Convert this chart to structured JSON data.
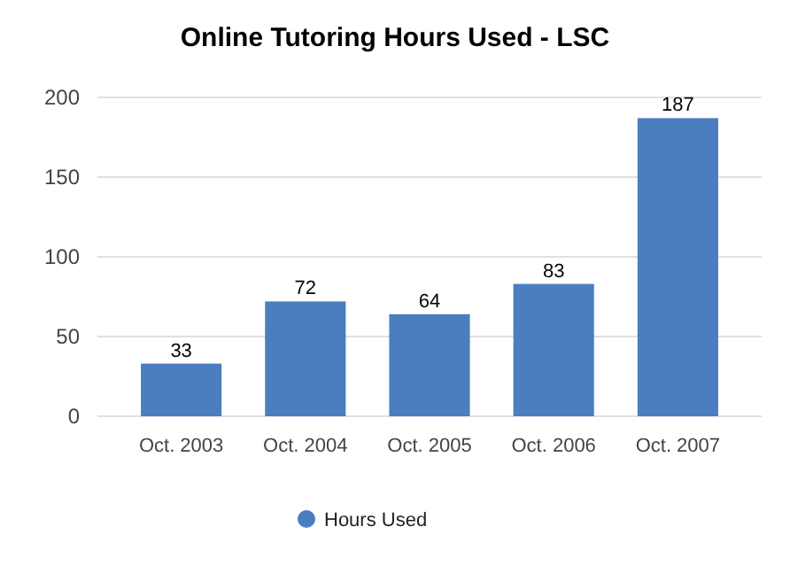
{
  "chart_data": {
    "type": "bar",
    "title": "Online Tutoring Hours Used - LSC",
    "categories": [
      "Oct. 2003",
      "Oct. 2004",
      "Oct. 2005",
      "Oct. 2006",
      "Oct. 2007"
    ],
    "series": [
      {
        "name": "Hours Used",
        "color": "#4a7ebf",
        "values": [
          33,
          72,
          64,
          83,
          187
        ]
      }
    ],
    "ylim": [
      0,
      200
    ],
    "yticks": [
      0,
      50,
      100,
      150,
      200
    ],
    "grid": "y",
    "legend": "bottom",
    "data_labels": true
  }
}
